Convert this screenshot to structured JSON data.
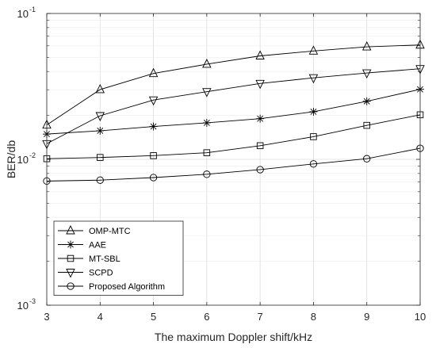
{
  "chart_data": {
    "type": "line",
    "xlabel": "The maximum Doppler shift/kHz",
    "ylabel": "BER/db",
    "x": [
      3,
      4,
      5,
      6,
      7,
      8,
      9,
      10
    ],
    "x_ticks": [
      "3",
      "4",
      "5",
      "6",
      "7",
      "8",
      "9",
      "10"
    ],
    "xlim": [
      3,
      10
    ],
    "ylim": [
      0.001,
      0.1
    ],
    "yscale": "log",
    "y_ticks": [
      {
        "value": 0.1,
        "base": "10",
        "exp": "-1"
      },
      {
        "value": 0.01,
        "base": "10",
        "exp": "-2"
      },
      {
        "value": 0.001,
        "base": "10",
        "exp": "-3"
      }
    ],
    "grid": true,
    "legend_position": "lower-left",
    "series": [
      {
        "name": "OMP-MTC",
        "marker": "triangle-up",
        "values": [
          0.0172,
          0.0301,
          0.0388,
          0.0449,
          0.0512,
          0.0553,
          0.0591,
          0.0608
        ]
      },
      {
        "name": "AAE",
        "marker": "asterisk",
        "values": [
          0.0149,
          0.0157,
          0.0168,
          0.0178,
          0.019,
          0.0212,
          0.025,
          0.0302
        ]
      },
      {
        "name": "MT-SBL",
        "marker": "square",
        "values": [
          0.0101,
          0.0103,
          0.0106,
          0.0111,
          0.0124,
          0.0143,
          0.0171,
          0.0202
        ]
      },
      {
        "name": "SCPD",
        "marker": "triangle-down",
        "values": [
          0.0128,
          0.0199,
          0.0255,
          0.0291,
          0.0331,
          0.0362,
          0.0391,
          0.0418
        ]
      },
      {
        "name": "Proposed Algorithm",
        "marker": "circle",
        "values": [
          0.0071,
          0.0072,
          0.0075,
          0.0079,
          0.0085,
          0.0093,
          0.0101,
          0.0119
        ]
      }
    ]
  }
}
